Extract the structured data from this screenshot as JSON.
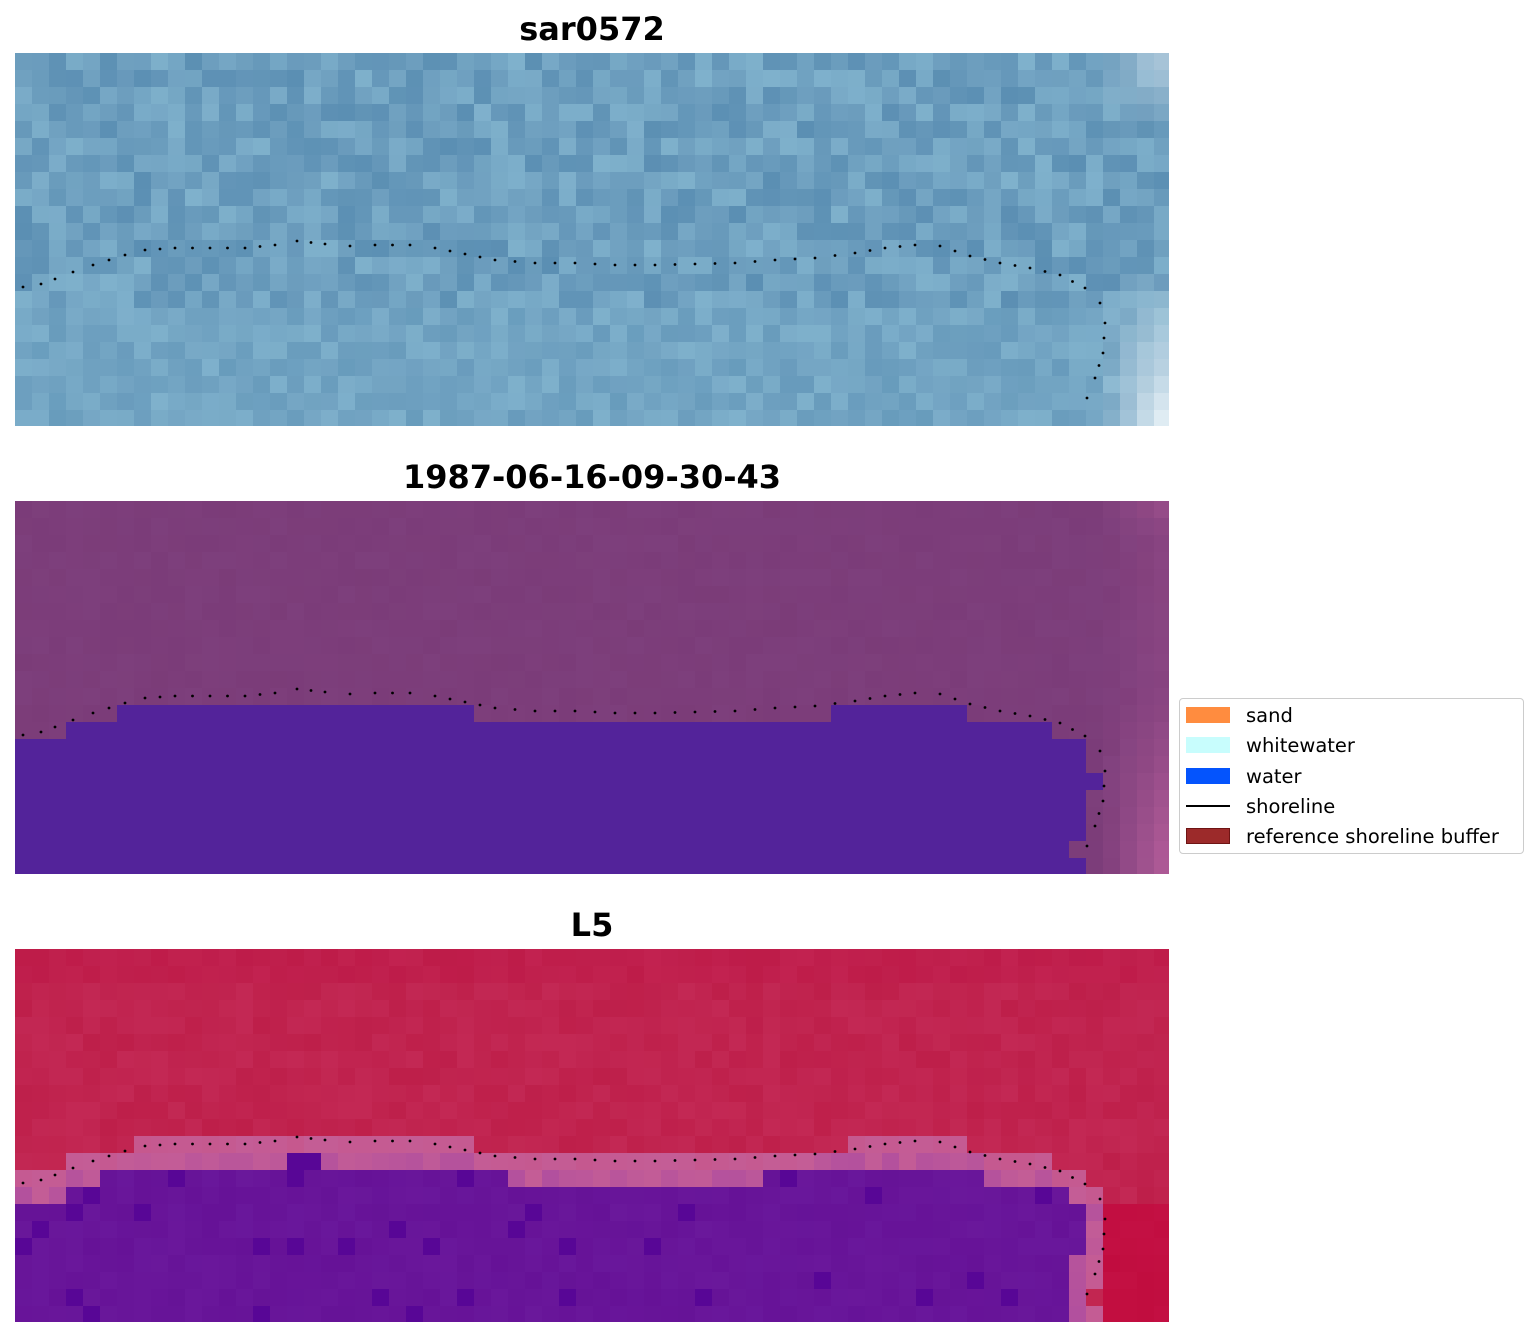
{
  "panels": [
    {
      "title": "sar0572",
      "style": "sar"
    },
    {
      "title": "1987-06-16-09-30-43",
      "style": "classified"
    },
    {
      "title": "L5",
      "style": "index"
    }
  ],
  "legend": {
    "items": [
      {
        "label": "sand",
        "color": "#ff8c3f",
        "kind": "patch"
      },
      {
        "label": "whitewater",
        "color": "#c8fdfd",
        "kind": "patch"
      },
      {
        "label": "water",
        "color": "#0454fd",
        "kind": "patch"
      },
      {
        "label": "shoreline",
        "color": "#000000",
        "kind": "line"
      },
      {
        "label": "reference shoreline buffer",
        "color": "#9c2a2a",
        "edge": "#6e1414",
        "kind": "patch"
      }
    ]
  },
  "colors": {
    "sar_base": "#6d9ebe",
    "sar_dark": "#5b8fb3",
    "sar_light": "#7fb1cc",
    "sar_white": "#e6f0f6",
    "classified_land": "#7d3f7c",
    "classified_water": "#53239a",
    "classified_edge": "#b25c98",
    "index_land": "#be1f4a",
    "index_water": "#661297",
    "index_transition": "#c45d96",
    "shoreline_dots": "#000000"
  }
}
